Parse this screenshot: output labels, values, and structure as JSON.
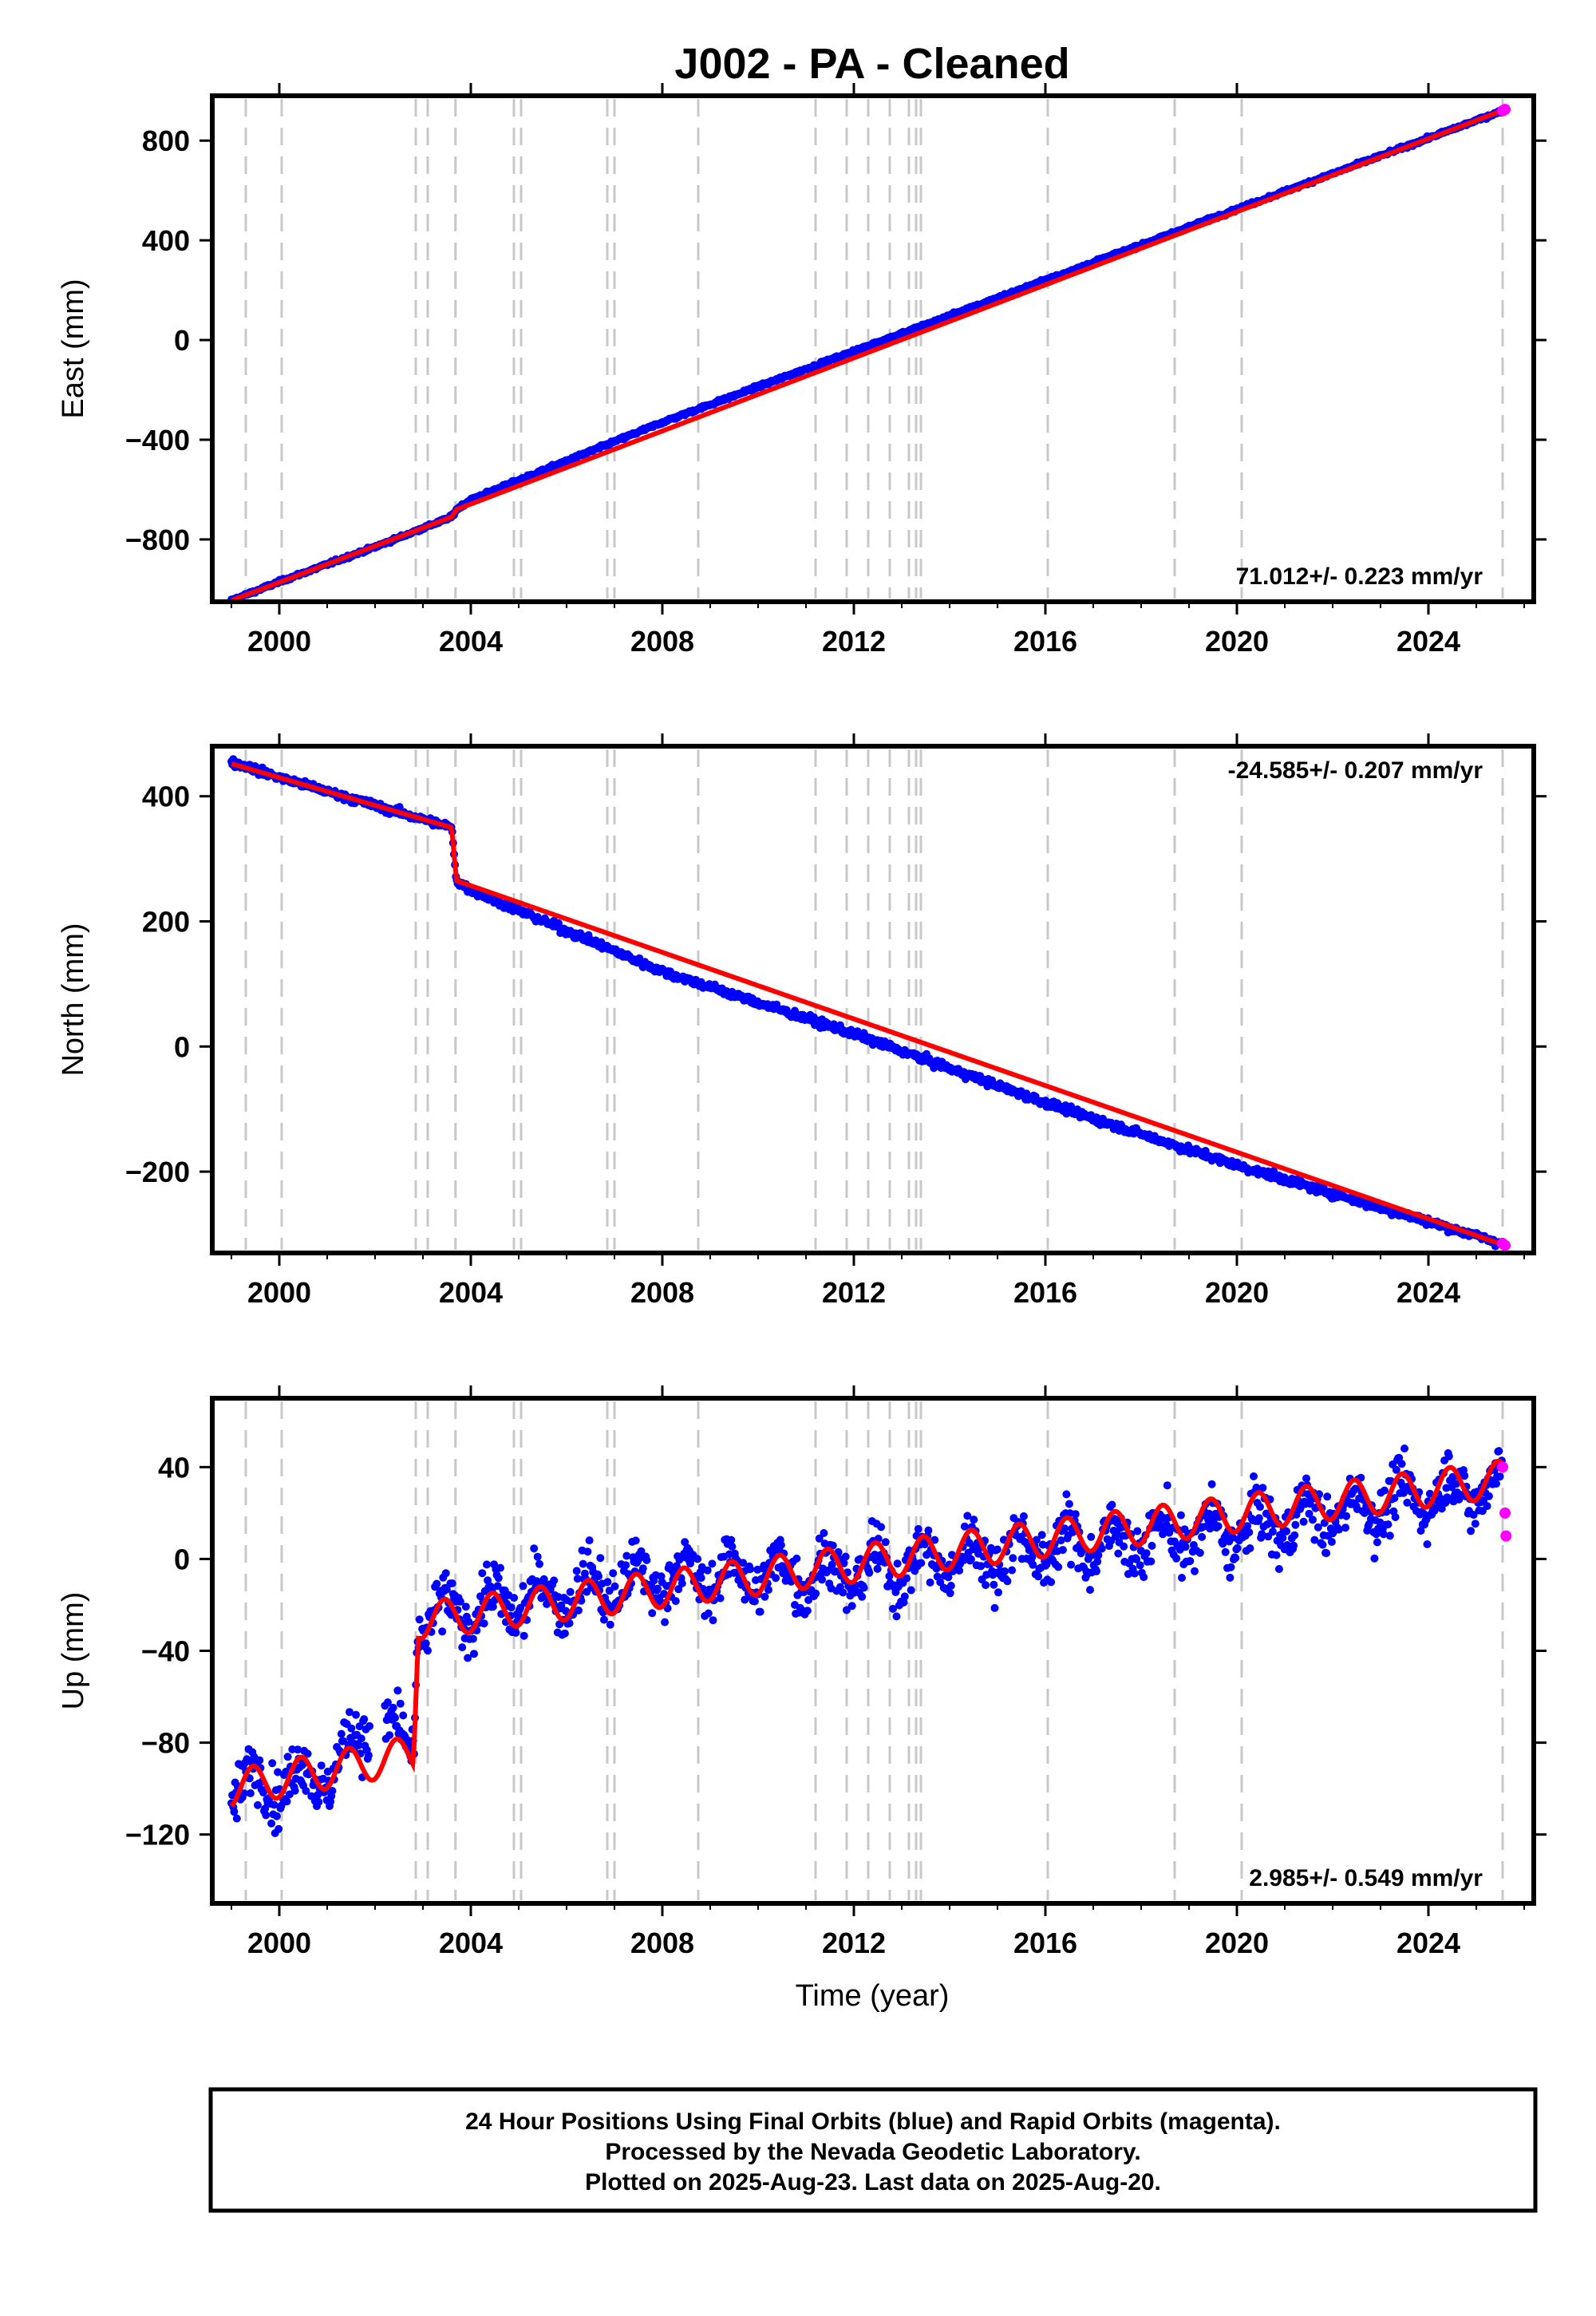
{
  "chart_data": [
    {
      "type": "scatter",
      "component": "East",
      "title": "J002  - PA - Cleaned",
      "ylabel": "East (mm)",
      "xlabel": "",
      "xlim": [
        1998.6,
        2026.2
      ],
      "ylim": [
        -1050,
        980
      ],
      "xticks": [
        2000,
        2004,
        2008,
        2012,
        2016,
        2020,
        2024
      ],
      "yticks": [
        -800,
        -400,
        0,
        400,
        800
      ],
      "rate_label": "71.012+/- 0.223 mm/yr",
      "offsets": [
        {
          "year": 2002.8,
          "value": 0
        },
        {
          "year": 2003.65,
          "value": 30
        }
      ],
      "seasonal_amplitude": 0,
      "series": [
        {
          "name": "Final Orbits",
          "color": "#0000ff",
          "x": [
            1999.0,
            2000.0,
            2002.0,
            2003.6,
            2003.7,
            2004.0,
            2008.0,
            2012.0,
            2016.0,
            2020.0,
            2024.0,
            2025.55
          ],
          "y": [
            -1045,
            -970,
            -830,
            -710,
            -680,
            -640,
            -330,
            -45,
            240,
            525,
            810,
            920
          ]
        },
        {
          "name": "Rapid Orbits",
          "color": "#ff00ff",
          "x": [
            2025.55,
            2025.6
          ],
          "y": [
            920,
            925
          ]
        },
        {
          "name": "Model",
          "color": "#ff0000",
          "x": [
            1999.0,
            2003.6,
            2003.7,
            2025.6
          ],
          "y": [
            -1045,
            -710,
            -680,
            925
          ]
        }
      ]
    },
    {
      "type": "scatter",
      "component": "North",
      "ylabel": "North (mm)",
      "xlabel": "",
      "xlim": [
        1998.6,
        2026.2
      ],
      "ylim": [
        -330,
        480
      ],
      "xticks": [
        2000,
        2004,
        2008,
        2012,
        2016,
        2020,
        2024
      ],
      "yticks": [
        -200,
        0,
        200,
        400
      ],
      "rate_label": "-24.585+/- 0.207 mm/yr",
      "offsets": [
        {
          "year": 2003.65,
          "value": -80
        }
      ],
      "seasonal_amplitude": 0,
      "series": [
        {
          "name": "Final Orbits",
          "color": "#0000ff",
          "x": [
            1999.0,
            2000.0,
            2002.0,
            2003.6,
            2003.7,
            2004.0,
            2008.0,
            2012.0,
            2016.0,
            2020.0,
            2024.0,
            2025.55
          ],
          "y": [
            455,
            430,
            385,
            350,
            265,
            250,
            120,
            20,
            -90,
            -190,
            -280,
            -315
          ]
        },
        {
          "name": "Rapid Orbits",
          "color": "#ff00ff",
          "x": [
            2025.55,
            2025.6
          ],
          "y": [
            -315,
            -318
          ]
        },
        {
          "name": "Model",
          "color": "#ff0000",
          "x": [
            1999.0,
            2003.6,
            2003.7,
            2025.6
          ],
          "y": [
            452,
            350,
            265,
            -318
          ]
        }
      ]
    },
    {
      "type": "scatter",
      "component": "Up",
      "ylabel": "Up (mm)",
      "xlabel": "Time (year)",
      "xlim": [
        1998.6,
        2026.2
      ],
      "ylim": [
        -150,
        70
      ],
      "xticks": [
        2000,
        2004,
        2008,
        2012,
        2016,
        2020,
        2024
      ],
      "yticks": [
        -120,
        -80,
        -40,
        0,
        40
      ],
      "rate_label": "2.985+/- 0.549 mm/yr",
      "offsets": [
        {
          "year": 2002.85,
          "value": 58
        }
      ],
      "seasonal_amplitude": 8,
      "series": [
        {
          "name": "Final Orbits",
          "color": "#0000ff",
          "x": [
            1999.0,
            2000.0,
            2001.0,
            2002.0,
            2002.8,
            2002.9,
            2004.0,
            2008.0,
            2012.0,
            2016.0,
            2020.0,
            2024.0,
            2025.55
          ],
          "y": [
            -100,
            -97,
            -94,
            -70,
            -84,
            -27,
            -22,
            -8,
            -6,
            5,
            12,
            28,
            32
          ]
        },
        {
          "name": "Rapid Orbits",
          "color": "#ff00ff",
          "x": [
            2025.55,
            2025.6,
            2025.62
          ],
          "y": [
            40,
            20,
            10
          ]
        },
        {
          "name": "Model",
          "color": "#ff0000",
          "x": [
            1999.0,
            2002.8,
            2002.9,
            2025.6
          ],
          "y": [
            -100,
            -85,
            -27,
            35
          ]
        }
      ]
    }
  ],
  "vertical_lines": [
    1999.3,
    2000.05,
    2002.85,
    2003.1,
    2003.68,
    2004.9,
    2005.05,
    2006.85,
    2007.0,
    2008.75,
    2011.2,
    2011.85,
    2012.3,
    2012.75,
    2013.15,
    2013.3,
    2013.4,
    2016.05,
    2018.7,
    2020.1,
    2025.55
  ],
  "footer": {
    "line1": "24 Hour Positions Using Final Orbits (blue) and Rapid Orbits (magenta).",
    "line2": "Processed by the Nevada Geodetic Laboratory.",
    "line3": "Plotted on 2025-Aug-23. Last data on 2025-Aug-20."
  }
}
